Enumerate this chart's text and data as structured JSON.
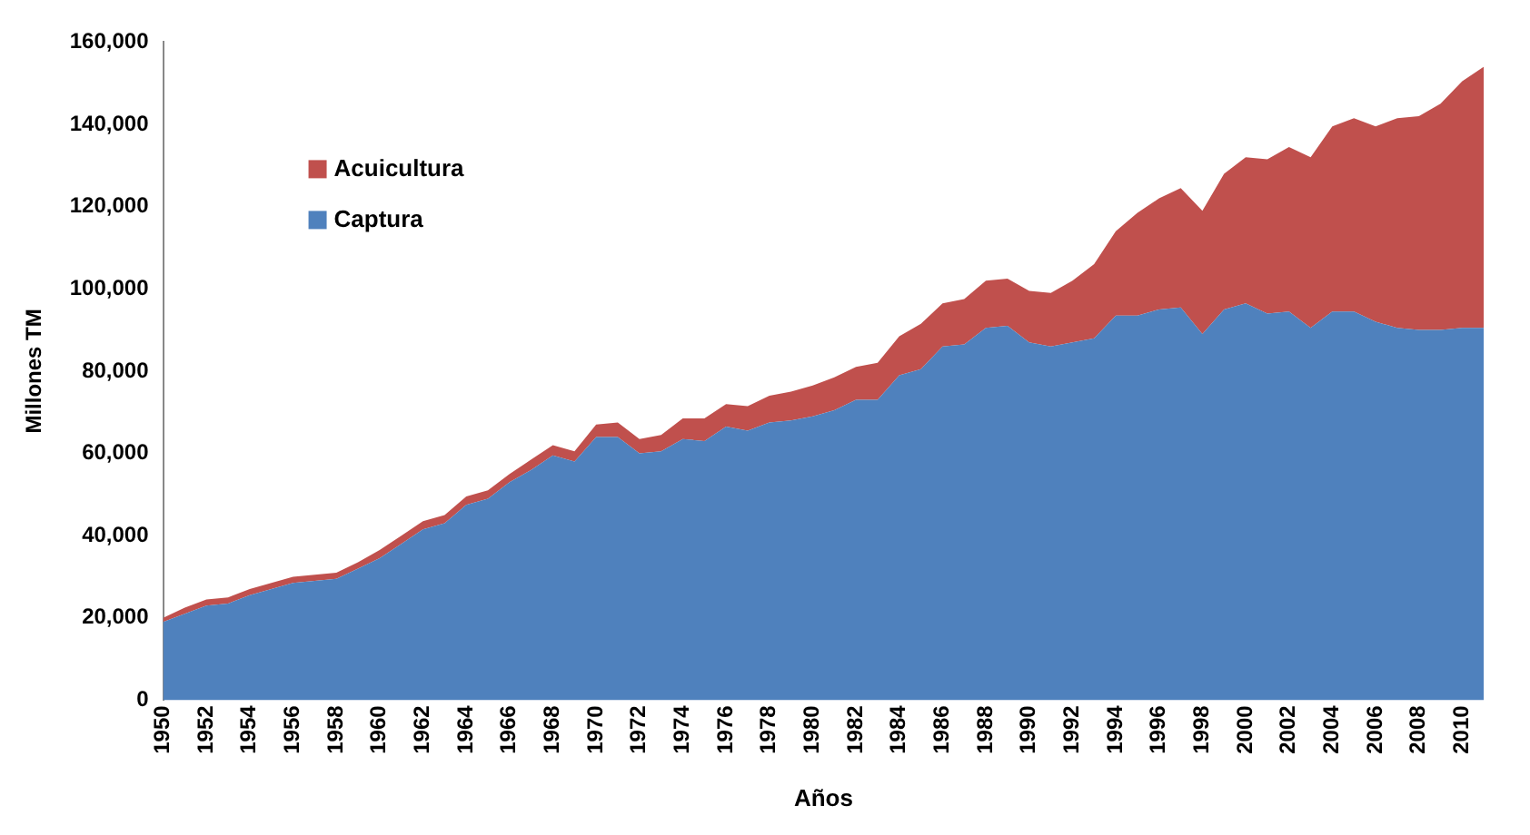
{
  "chart_data": {
    "type": "area",
    "xlabel": "Años",
    "ylabel": "Millones TM",
    "stacked": true,
    "legend": "top left",
    "grid": false,
    "categories": [
      "1950",
      null,
      "1952",
      null,
      "1954",
      null,
      "1956",
      null,
      "1958",
      null,
      "1960",
      null,
      "1962",
      null,
      "1964",
      null,
      "1966",
      null,
      "1968",
      null,
      "1970",
      null,
      "1972",
      null,
      "1974",
      null,
      "1976",
      null,
      "1978",
      null,
      "1980",
      null,
      "1982",
      null,
      "1984",
      null,
      "1986",
      null,
      "1988",
      null,
      "1990",
      null,
      "1992",
      null,
      "1994",
      null,
      "1996",
      null,
      "1998",
      null,
      "2000",
      null,
      "2002",
      null,
      "2004",
      null,
      "2006",
      null,
      "2008",
      null,
      "2010",
      null
    ],
    "ylim": [
      0,
      160000
    ],
    "yticks": [
      {
        "value": 0,
        "label": "0"
      },
      {
        "value": 20000,
        "label": "20,000"
      },
      {
        "value": 40000,
        "label": "40,000"
      },
      {
        "value": 60000,
        "label": "60,000"
      },
      {
        "value": 80000,
        "label": "80,000"
      },
      {
        "value": 100000,
        "label": "100,000"
      },
      {
        "value": 120000,
        "label": "120,000"
      },
      {
        "value": 140000,
        "label": "140,000"
      },
      {
        "value": 160000,
        "label": "160,000"
      }
    ],
    "series": [
      {
        "name": "Captura",
        "color": "#4f81bd",
        "values": [
          19000,
          21000,
          23000,
          23500,
          25500,
          27000,
          28500,
          29000,
          29500,
          32000,
          34500,
          38000,
          41500,
          43000,
          47500,
          49000,
          53000,
          56000,
          59500,
          58000,
          64000,
          64000,
          60000,
          60500,
          63500,
          63000,
          66500,
          65500,
          67500,
          68000,
          69000,
          70500,
          73000,
          73000,
          79000,
          80500,
          86000,
          86500,
          90500,
          91000,
          87000,
          86000,
          87000,
          88000,
          93500,
          93500,
          95000,
          95500,
          89000,
          95000,
          96500,
          94000,
          94500,
          90500,
          94500,
          94500,
          92000,
          90500,
          90000,
          90000,
          90500,
          90500
        ]
      },
      {
        "name": "Acuicultura",
        "color": "#c0504d",
        "values": [
          1000,
          1500,
          1500,
          1500,
          1500,
          1500,
          1500,
          1500,
          1500,
          1500,
          2000,
          2000,
          2000,
          2000,
          2000,
          2000,
          2000,
          2500,
          2500,
          2500,
          3000,
          3500,
          3500,
          4000,
          5000,
          5500,
          5500,
          6000,
          6500,
          7000,
          7500,
          8000,
          8000,
          9000,
          9500,
          11000,
          10500,
          11000,
          11500,
          11500,
          12500,
          13000,
          15000,
          18000,
          20500,
          25000,
          27000,
          29000,
          30000,
          33000,
          35500,
          37500,
          40000,
          41500,
          45000,
          47000,
          47500,
          51000,
          52000,
          55000,
          60000,
          63500
        ]
      }
    ]
  }
}
